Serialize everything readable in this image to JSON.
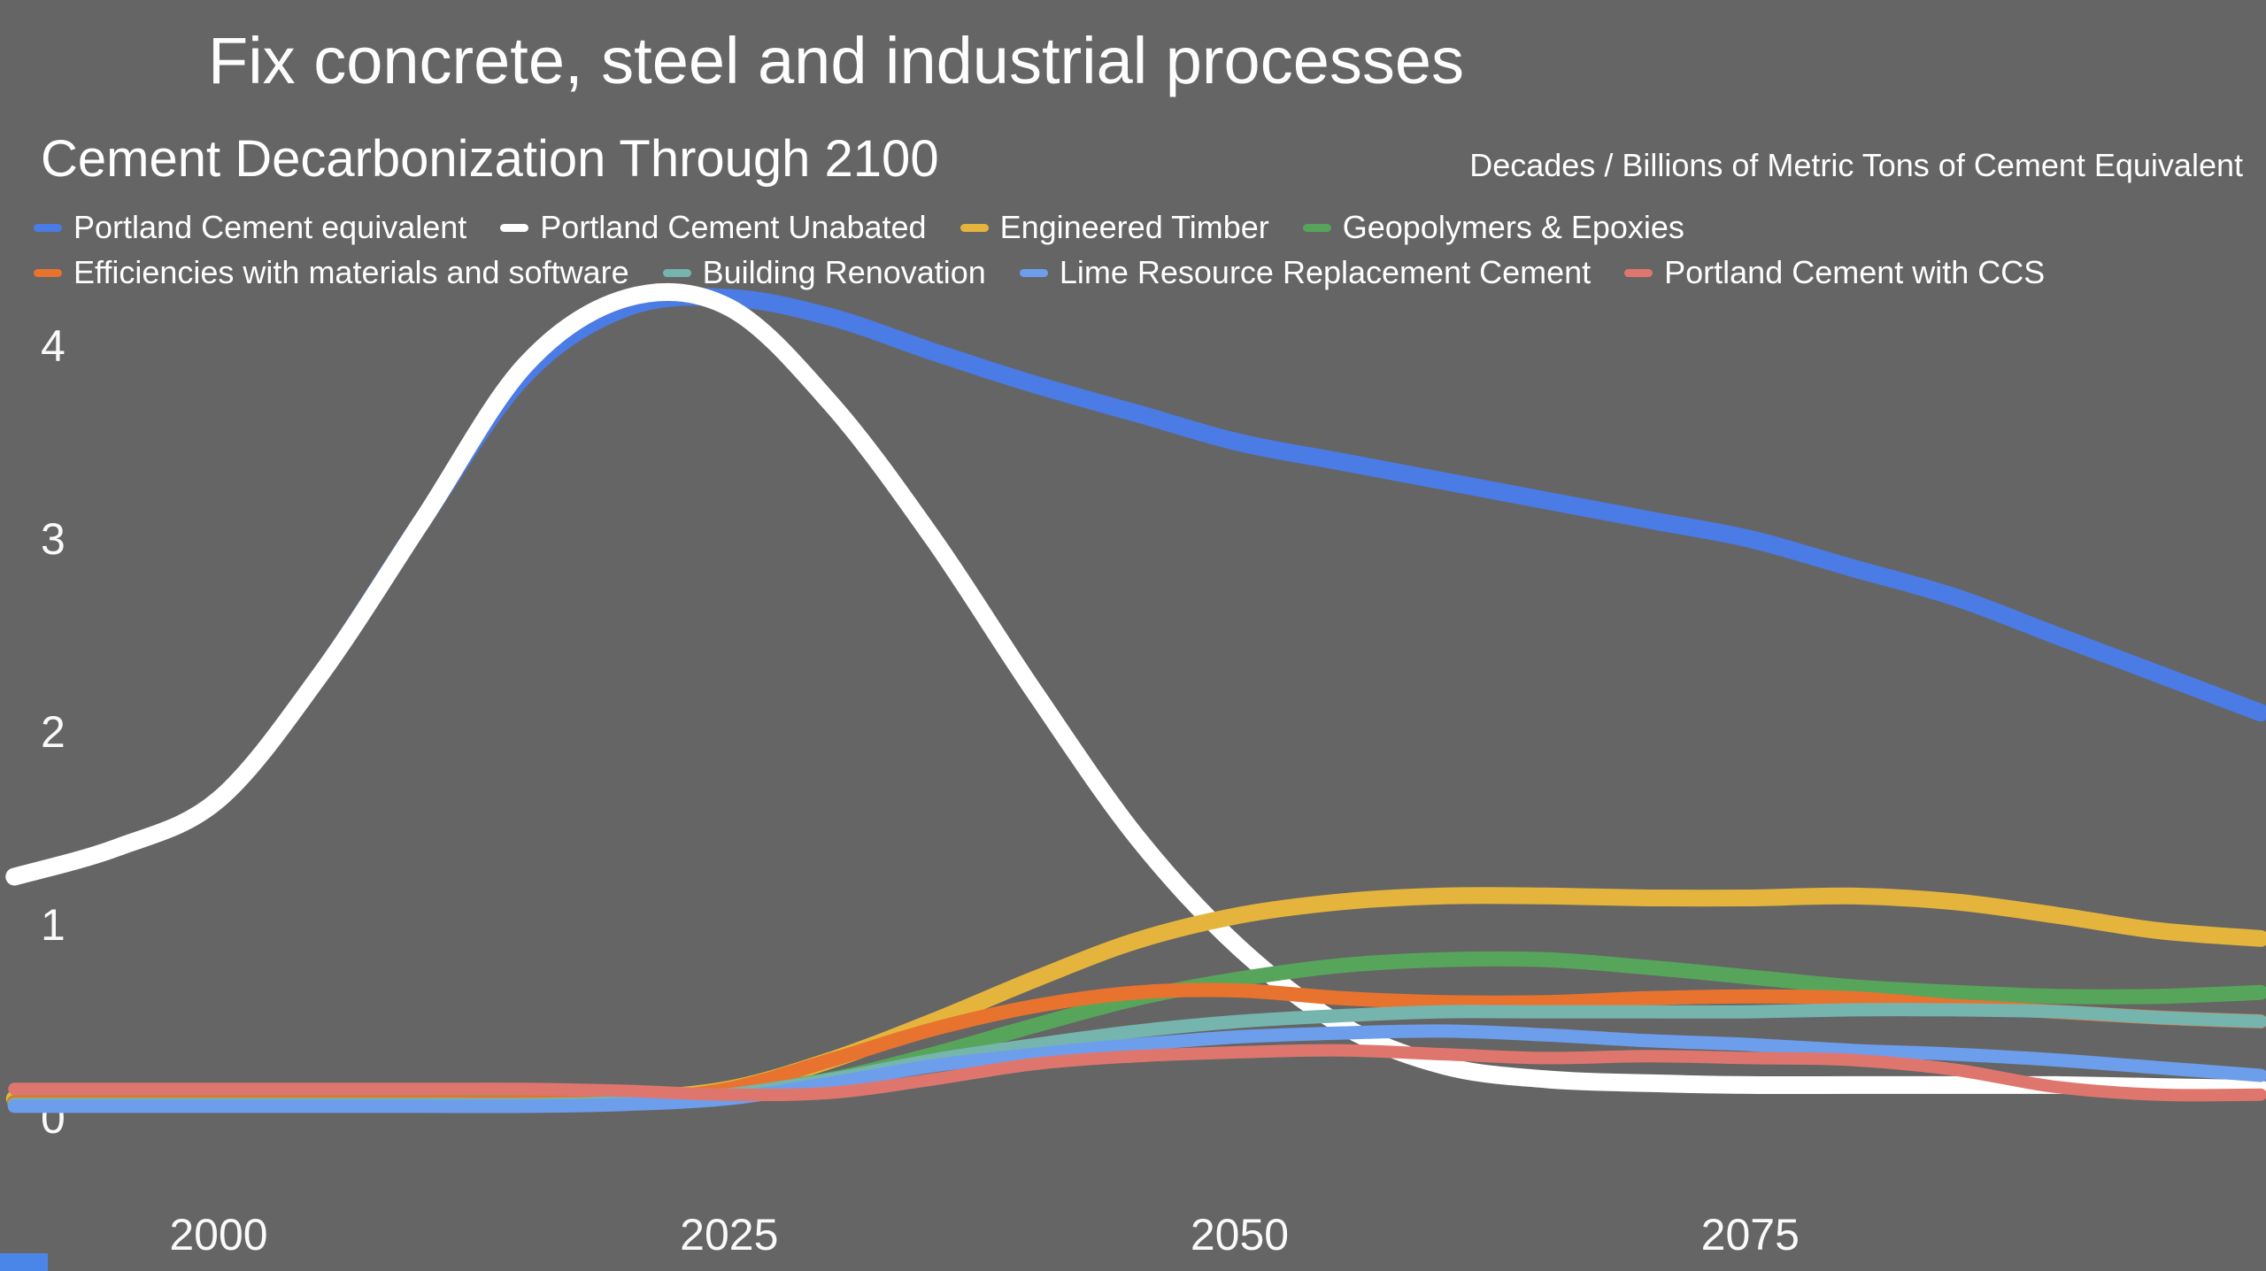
{
  "header": {
    "title": "Fix concrete, steel and industrial processes",
    "chart_title": "Cement Decarbonization Through 2100",
    "units_label": "Decades / Billions of Metric Tons of Cement Equivalent"
  },
  "colors": {
    "background": "#656565",
    "text": "#ffffff",
    "accent_blue": "#4a86e8"
  },
  "legend": {
    "rows": [
      [
        {
          "label": "Portland Cement equivalent",
          "color": "#4b7be5"
        },
        {
          "label": "Portland Cement Unabated",
          "color": "#ffffff"
        },
        {
          "label": "Engineered Timber",
          "color": "#e5b43c"
        },
        {
          "label": "Geopolymers & Epoxies",
          "color": "#57a55a"
        }
      ],
      [
        {
          "label": "Efficiencies with materials and software",
          "color": "#e8732e"
        },
        {
          "label": "Building Renovation",
          "color": "#76b4ae"
        },
        {
          "label": "Lime Resource Replacement Cement",
          "color": "#6d9eeb"
        },
        {
          "label": "Portland Cement with CCS",
          "color": "#df766e"
        }
      ]
    ]
  },
  "chart_data": {
    "type": "line",
    "title": "Cement Decarbonization Through 2100",
    "xlabel": "",
    "ylabel": "Billions of Metric Tons of Cement Equivalent",
    "x_unit": "Decades",
    "xlim": [
      1990,
      2100
    ],
    "ylim": [
      0,
      4.6
    ],
    "grid": false,
    "legend_position": "top",
    "x_ticks": [
      2000,
      2025,
      2050,
      2075
    ],
    "y_ticks": [
      0,
      1,
      2,
      3,
      4
    ],
    "x": [
      1990,
      1995,
      2000,
      2005,
      2010,
      2015,
      2020,
      2025,
      2030,
      2035,
      2040,
      2045,
      2050,
      2055,
      2060,
      2065,
      2070,
      2075,
      2080,
      2085,
      2090,
      2095,
      2100
    ],
    "series": [
      {
        "name": "Portland Cement equivalent",
        "color": "#4b7be5",
        "width": 20,
        "values": [
          1.25,
          1.4,
          1.65,
          2.3,
          3.1,
          3.85,
          4.2,
          4.25,
          4.15,
          3.97,
          3.8,
          3.65,
          3.5,
          3.4,
          3.3,
          3.2,
          3.1,
          3.0,
          2.85,
          2.7,
          2.5,
          2.3,
          2.1
        ]
      },
      {
        "name": "Portland Cement Unabated",
        "color": "#ffffff",
        "width": 20,
        "values": [
          1.25,
          1.4,
          1.65,
          2.3,
          3.1,
          3.9,
          4.25,
          4.2,
          3.7,
          3.0,
          2.2,
          1.45,
          0.88,
          0.48,
          0.27,
          0.2,
          0.18,
          0.17,
          0.17,
          0.17,
          0.17,
          0.16,
          0.15
        ]
      },
      {
        "name": "Engineered Timber",
        "color": "#e5b43c",
        "width": 19,
        "values": [
          0.1,
          0.1,
          0.1,
          0.1,
          0.1,
          0.1,
          0.1,
          0.15,
          0.3,
          0.5,
          0.72,
          0.92,
          1.05,
          1.12,
          1.15,
          1.15,
          1.14,
          1.14,
          1.15,
          1.12,
          1.05,
          0.97,
          0.93
        ]
      },
      {
        "name": "Geopolymers & Epoxies",
        "color": "#57a55a",
        "width": 17,
        "values": [
          0.08,
          0.08,
          0.08,
          0.08,
          0.08,
          0.08,
          0.08,
          0.12,
          0.2,
          0.33,
          0.48,
          0.62,
          0.72,
          0.79,
          0.82,
          0.82,
          0.78,
          0.73,
          0.68,
          0.65,
          0.63,
          0.63,
          0.65
        ]
      },
      {
        "name": "Efficiencies with materials and software",
        "color": "#e8732e",
        "width": 16,
        "values": [
          0.08,
          0.08,
          0.08,
          0.08,
          0.08,
          0.08,
          0.09,
          0.15,
          0.3,
          0.46,
          0.58,
          0.65,
          0.66,
          0.62,
          0.6,
          0.6,
          0.62,
          0.63,
          0.62,
          0.58,
          0.55,
          0.52,
          0.5
        ]
      },
      {
        "name": "Building Renovation",
        "color": "#76b4ae",
        "width": 15,
        "values": [
          0.07,
          0.07,
          0.07,
          0.07,
          0.07,
          0.07,
          0.08,
          0.12,
          0.2,
          0.3,
          0.38,
          0.45,
          0.5,
          0.53,
          0.55,
          0.55,
          0.55,
          0.55,
          0.56,
          0.56,
          0.55,
          0.52,
          0.5
        ]
      },
      {
        "name": "Lime Resource Replacement Cement",
        "color": "#6d9eeb",
        "width": 15,
        "values": [
          0.06,
          0.06,
          0.06,
          0.06,
          0.06,
          0.06,
          0.07,
          0.1,
          0.18,
          0.27,
          0.33,
          0.38,
          0.42,
          0.44,
          0.45,
          0.43,
          0.4,
          0.38,
          0.35,
          0.33,
          0.3,
          0.26,
          0.22
        ]
      },
      {
        "name": "Portland Cement with CCS",
        "color": "#df766e",
        "width": 14,
        "values": [
          0.15,
          0.15,
          0.15,
          0.15,
          0.15,
          0.15,
          0.14,
          0.12,
          0.13,
          0.2,
          0.28,
          0.32,
          0.34,
          0.35,
          0.33,
          0.31,
          0.32,
          0.31,
          0.3,
          0.25,
          0.16,
          0.12,
          0.12
        ]
      }
    ]
  }
}
